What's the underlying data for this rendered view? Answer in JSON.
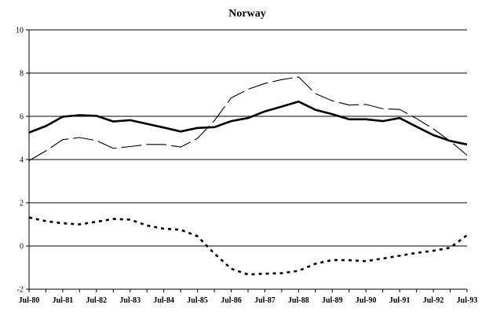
{
  "chart_data": {
    "type": "line",
    "title": "Norway",
    "xlabel": "",
    "ylabel": "",
    "ylim": [
      -2,
      10
    ],
    "yticks": [
      -2,
      0,
      2,
      4,
      6,
      8,
      10
    ],
    "grid": "horizontal at 2-unit steps",
    "legend": "none",
    "x_tick_labels": [
      "Jul-80",
      "Jul-81",
      "Jul-82",
      "Jul-83",
      "Jul-84",
      "Jul-85",
      "Jul-86",
      "Jul-87",
      "Jul-88",
      "Jul-89",
      "Jul-90",
      "Jul-91",
      "Jul-92",
      "Jul-93"
    ],
    "x": [
      "Jul-80",
      "Jan-81",
      "Jul-81",
      "Jan-82",
      "Jul-82",
      "Jan-83",
      "Jul-83",
      "Jan-84",
      "Jul-84",
      "Jan-85",
      "Jul-85",
      "Jan-86",
      "Jul-86",
      "Jan-87",
      "Jul-87",
      "Jan-88",
      "Jul-88",
      "Jan-89",
      "Jul-89",
      "Jan-90",
      "Jul-90",
      "Jan-91",
      "Jul-91",
      "Jan-92",
      "Jul-92",
      "Jan-93",
      "Jul-93"
    ],
    "series": [
      {
        "style": "thick-solid",
        "color": "#000000",
        "values": [
          5.25,
          5.55,
          5.98,
          6.05,
          6.02,
          5.76,
          5.82,
          5.65,
          5.48,
          5.3,
          5.46,
          5.5,
          5.78,
          5.92,
          6.23,
          6.45,
          6.68,
          6.3,
          6.1,
          5.86,
          5.86,
          5.78,
          5.92,
          5.52,
          5.13,
          4.86,
          4.7
        ]
      },
      {
        "style": "long-dash",
        "color": "#000000",
        "values": [
          3.95,
          4.4,
          4.92,
          5.02,
          4.88,
          4.52,
          4.6,
          4.7,
          4.7,
          4.58,
          4.98,
          5.8,
          6.85,
          7.25,
          7.52,
          7.7,
          7.82,
          7.05,
          6.72,
          6.52,
          6.55,
          6.35,
          6.32,
          5.9,
          5.42,
          4.85,
          4.2
        ]
      },
      {
        "style": "short-dash",
        "color": "#000000",
        "values": [
          1.32,
          1.15,
          1.05,
          1.0,
          1.12,
          1.25,
          1.22,
          0.95,
          0.8,
          0.75,
          0.45,
          -0.35,
          -1.05,
          -1.32,
          -1.28,
          -1.26,
          -1.15,
          -0.82,
          -0.65,
          -0.66,
          -0.7,
          -0.58,
          -0.45,
          -0.32,
          -0.22,
          -0.08,
          0.5
        ]
      }
    ]
  }
}
